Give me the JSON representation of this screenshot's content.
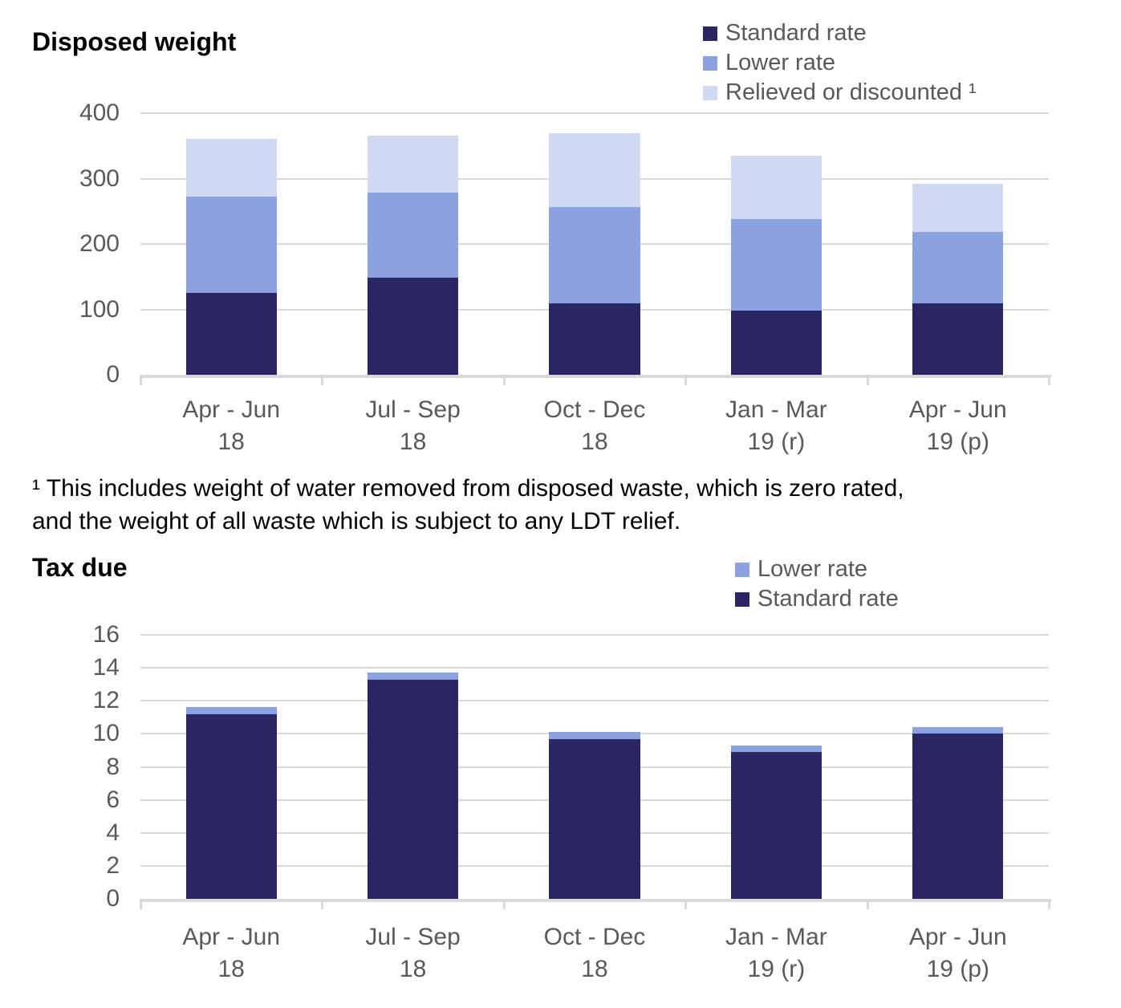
{
  "footnote": {
    "lines": [
      "¹ This includes weight of water removed from disposed waste, which is zero rated,",
      "and the weight of all waste which is subject to any LDT relief."
    ]
  },
  "colors": {
    "standard_rate": "#2a2563",
    "lower_rate": "#8ca2e0",
    "relieved_or_discounted": "#cfdaf2",
    "grid": "#d9d9d9",
    "axis_text": "#595959"
  },
  "chart_data": [
    {
      "type": "bar",
      "stacked": true,
      "title": "Disposed weight",
      "xlabel": "",
      "ylabel": "",
      "ylim": [
        0,
        400
      ],
      "ystep": 100,
      "grid": "horizontal",
      "legend_position": "top-right",
      "categories": [
        [
          "Apr - Jun",
          "18"
        ],
        [
          "Jul - Sep",
          "18"
        ],
        [
          "Oct - Dec",
          "18"
        ],
        [
          "Jan - Mar",
          "19 (r)"
        ],
        [
          "Apr - Jun",
          "19 (p)"
        ]
      ],
      "series": [
        {
          "name": "Standard rate",
          "color": "#2a2563",
          "values": [
            125,
            148,
            109,
            98,
            109
          ]
        },
        {
          "name": "Lower rate",
          "color": "#8ca2e0",
          "values": [
            147,
            130,
            148,
            140,
            109
          ]
        },
        {
          "name": "Relieved or discounted",
          "color": "#cfdaf2",
          "values": [
            89,
            88,
            112,
            97,
            74
          ]
        }
      ],
      "legend": [
        {
          "label": "Standard rate",
          "series": 0
        },
        {
          "label": "Lower rate",
          "series": 1
        },
        {
          "label": "Relieved or discounted ¹",
          "series": 2
        }
      ]
    },
    {
      "type": "bar",
      "stacked": true,
      "title": "Tax due",
      "xlabel": "",
      "ylabel": "",
      "ylim": [
        0,
        16
      ],
      "ystep": 2,
      "grid": "horizontal",
      "legend_position": "top-right",
      "categories": [
        [
          "Apr - Jun",
          "18"
        ],
        [
          "Jul - Sep",
          "18"
        ],
        [
          "Oct - Dec",
          "18"
        ],
        [
          "Jan - Mar",
          "19 (r)"
        ],
        [
          "Apr - Jun",
          "19 (p)"
        ]
      ],
      "series": [
        {
          "name": "Standard rate",
          "color": "#2a2563",
          "values": [
            11.2,
            13.3,
            9.7,
            8.9,
            10.0
          ]
        },
        {
          "name": "Lower rate",
          "color": "#8ca2e0",
          "values": [
            0.4,
            0.4,
            0.4,
            0.4,
            0.4
          ]
        }
      ],
      "legend": [
        {
          "label": "Lower rate",
          "series": 1
        },
        {
          "label": "Standard rate",
          "series": 0
        }
      ]
    }
  ]
}
